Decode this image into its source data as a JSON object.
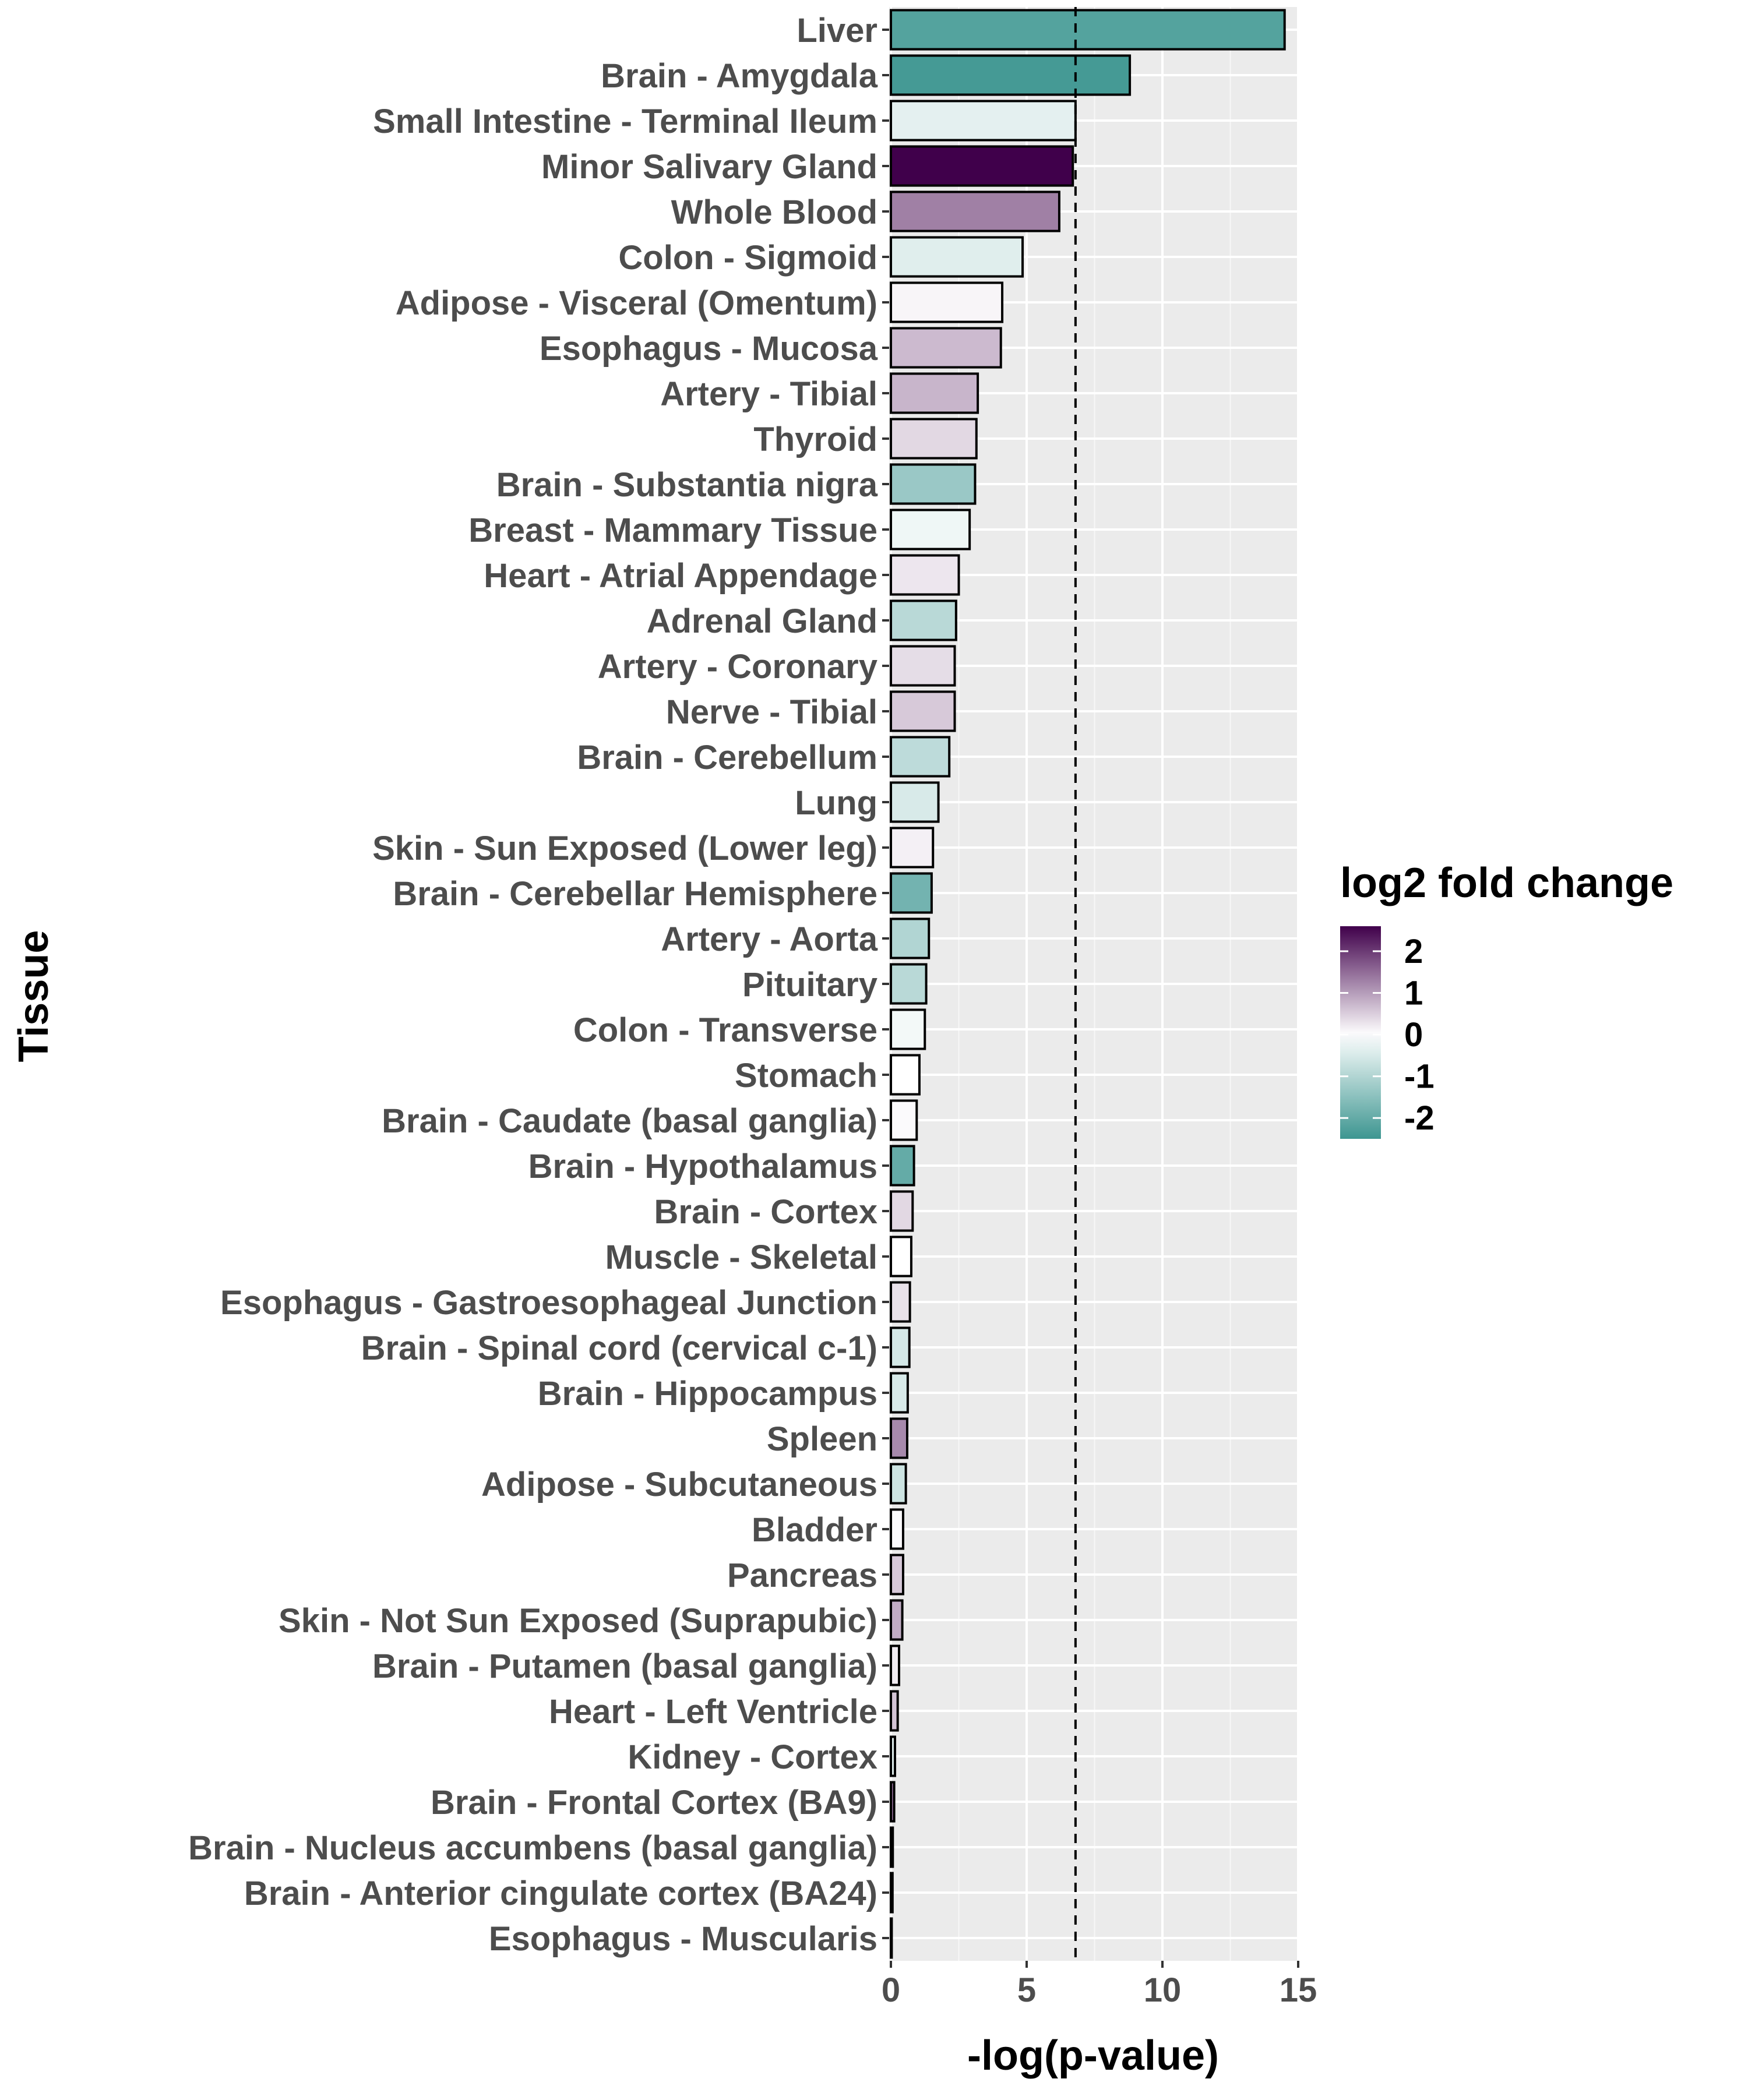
{
  "chart_data": {
    "type": "bar",
    "orientation": "horizontal",
    "title": "",
    "xlabel": "-log(p-value)",
    "ylabel": "Tissue",
    "xlim": [
      0,
      15
    ],
    "xticks": [
      0,
      5,
      10,
      15
    ],
    "threshold_line": 6.8,
    "grid": true,
    "legend": {
      "title": "log2 fold change",
      "position": "right",
      "ticks": [
        2,
        1,
        0,
        -1,
        -2
      ],
      "range": [
        -2.5,
        2.6
      ],
      "color_low": "#3d9691",
      "color_mid": "#ffffff",
      "color_high": "#40004b"
    },
    "categories": [
      "Liver",
      "Brain - Amygdala",
      "Small Intestine - Terminal Ileum",
      "Minor Salivary Gland",
      "Whole Blood",
      "Colon - Sigmoid",
      "Adipose - Visceral (Omentum)",
      "Esophagus - Mucosa",
      "Artery - Tibial",
      "Thyroid",
      "Brain - Substantia nigra",
      "Breast - Mammary Tissue",
      "Heart - Atrial Appendage",
      "Adrenal Gland",
      "Artery - Coronary",
      "Nerve - Tibial",
      "Brain - Cerebellum",
      "Lung",
      "Skin - Sun Exposed (Lower leg)",
      "Brain - Cerebellar Hemisphere",
      "Artery - Aorta",
      "Pituitary",
      "Colon - Transverse",
      "Stomach",
      "Brain - Caudate (basal ganglia)",
      "Brain - Hypothalamus",
      "Brain - Cortex",
      "Muscle - Skeletal",
      "Esophagus - Gastroesophageal Junction",
      "Brain - Spinal cord (cervical c-1)",
      "Brain - Hippocampus",
      "Spleen",
      "Adipose - Subcutaneous",
      "Bladder",
      "Pancreas",
      "Skin - Not Sun Exposed (Suprapubic)",
      "Brain - Putamen (basal ganglia)",
      "Heart - Left Ventricle",
      "Kidney - Cortex",
      "Brain - Frontal Cortex (BA9)",
      "Brain - Nucleus accumbens (basal ganglia)",
      "Brain - Anterior cingulate cortex (BA24)",
      "Esophagus - Muscularis"
    ],
    "values": [
      14.5,
      8.8,
      6.8,
      6.7,
      6.2,
      4.85,
      4.1,
      4.05,
      3.2,
      3.15,
      3.1,
      2.9,
      2.5,
      2.4,
      2.35,
      2.35,
      2.15,
      1.75,
      1.55,
      1.5,
      1.4,
      1.3,
      1.25,
      1.05,
      0.95,
      0.85,
      0.8,
      0.75,
      0.7,
      0.68,
      0.62,
      0.6,
      0.55,
      0.45,
      0.45,
      0.42,
      0.3,
      0.25,
      0.15,
      0.12,
      0.07,
      0.06,
      0.03
    ],
    "log2_fold_change": [
      -2.2,
      -2.4,
      -0.35,
      2.6,
      1.3,
      -0.4,
      0.1,
      0.7,
      0.75,
      0.4,
      -1.3,
      -0.2,
      0.25,
      -0.9,
      0.35,
      0.55,
      -0.85,
      -0.5,
      0.15,
      -1.8,
      -1.0,
      -0.9,
      -0.15,
      0.0,
      0.05,
      -2.0,
      0.4,
      0.0,
      0.3,
      -0.55,
      -0.5,
      1.2,
      -0.65,
      0.05,
      0.55,
      0.85,
      0.2,
      0.6,
      -0.4,
      1.5,
      0.5,
      0.5,
      0.0
    ]
  }
}
